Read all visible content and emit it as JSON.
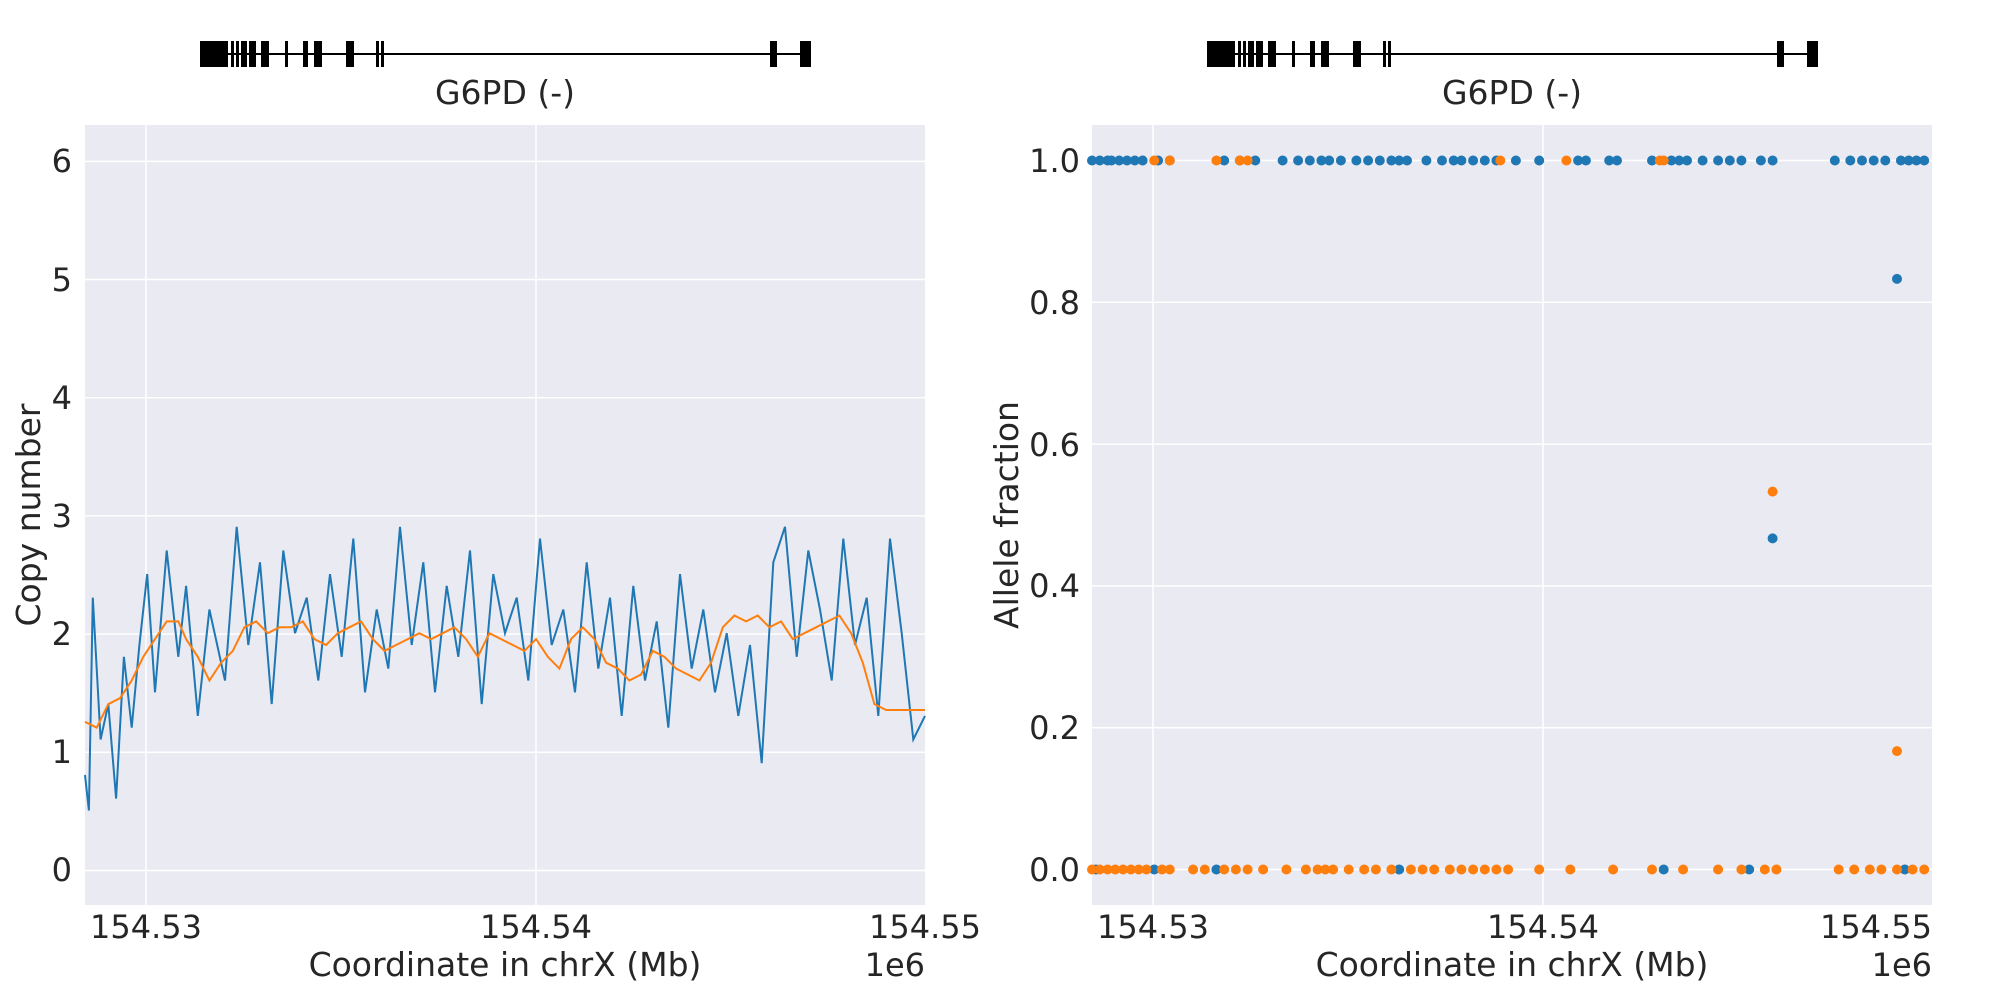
{
  "chart_data": [
    {
      "type": "line",
      "gene_track": {
        "label": "G6PD (-)"
      },
      "xlabel": "Coordinate in chrX (Mb)",
      "ylabel": "Copy number",
      "x_offset_label": "1e6",
      "xlim": [
        154.5284,
        154.55
      ],
      "ylim": [
        -0.3,
        6.3
      ],
      "x_ticks": [
        "154.53",
        "154.54",
        "154.55"
      ],
      "y_ticks": [
        "0",
        "1",
        "2",
        "3",
        "4",
        "5",
        "6"
      ],
      "grid": true,
      "series": [
        {
          "color": "#1f77b4",
          "x": [
            154.5284,
            154.5285,
            154.5286,
            154.5288,
            154.529,
            154.5292,
            154.5294,
            154.5296,
            154.5298,
            154.53,
            154.5302,
            154.5305,
            154.5308,
            154.531,
            154.5313,
            154.5316,
            154.532,
            154.5323,
            154.5326,
            154.5329,
            154.5332,
            154.5335,
            154.5338,
            154.5341,
            154.5344,
            154.5347,
            154.535,
            154.5353,
            154.5356,
            154.5359,
            154.5362,
            154.5365,
            154.5368,
            154.5371,
            154.5374,
            154.5377,
            154.538,
            154.5383,
            154.5386,
            154.5389,
            154.5392,
            154.5395,
            154.5398,
            154.5401,
            154.5404,
            154.5407,
            154.541,
            154.5413,
            154.5416,
            154.5419,
            154.5422,
            154.5425,
            154.5428,
            154.5431,
            154.5434,
            154.5437,
            154.544,
            154.5443,
            154.5446,
            154.5449,
            154.5452,
            154.5455,
            154.5458,
            154.5461,
            154.5464,
            154.5467,
            154.547,
            154.5473,
            154.5476,
            154.5479,
            154.5482,
            154.5485,
            154.5488,
            154.5491,
            154.5494,
            154.5497,
            154.55
          ],
          "values": [
            0.8,
            0.5,
            2.3,
            1.1,
            1.4,
            0.6,
            1.8,
            1.2,
            1.9,
            2.5,
            1.5,
            2.7,
            1.8,
            2.4,
            1.3,
            2.2,
            1.6,
            2.9,
            1.9,
            2.6,
            1.4,
            2.7,
            2.0,
            2.3,
            1.6,
            2.5,
            1.8,
            2.8,
            1.5,
            2.2,
            1.7,
            2.9,
            1.9,
            2.6,
            1.5,
            2.4,
            1.8,
            2.7,
            1.4,
            2.5,
            2.0,
            2.3,
            1.6,
            2.8,
            1.9,
            2.2,
            1.5,
            2.6,
            1.7,
            2.3,
            1.3,
            2.4,
            1.6,
            2.1,
            1.2,
            2.5,
            1.7,
            2.2,
            1.5,
            2.0,
            1.3,
            1.9,
            0.9,
            2.6,
            2.9,
            1.8,
            2.7,
            2.2,
            1.6,
            2.8,
            1.9,
            2.3,
            1.3,
            2.8,
            2.0,
            1.1,
            1.3
          ]
        },
        {
          "color": "#ff7f0e",
          "x": [
            154.5284,
            154.5287,
            154.529,
            154.5293,
            154.5296,
            154.5299,
            154.5302,
            154.5305,
            154.5308,
            154.531,
            154.5313,
            154.5316,
            154.5319,
            154.5322,
            154.5325,
            154.5328,
            154.5331,
            154.5334,
            154.5337,
            154.534,
            154.5343,
            154.5346,
            154.5349,
            154.5352,
            154.5355,
            154.5358,
            154.5361,
            154.5364,
            154.5367,
            154.537,
            154.5373,
            154.5376,
            154.5379,
            154.5382,
            154.5385,
            154.5388,
            154.5391,
            154.5394,
            154.5397,
            154.54,
            154.5403,
            154.5406,
            154.5409,
            154.5412,
            154.5415,
            154.5418,
            154.5421,
            154.5424,
            154.5427,
            154.543,
            154.5433,
            154.5436,
            154.5439,
            154.5442,
            154.5445,
            154.5448,
            154.5451,
            154.5454,
            154.5457,
            154.546,
            154.5463,
            154.5466,
            154.5469,
            154.5472,
            154.5475,
            154.5478,
            154.5481,
            154.5484,
            154.5487,
            154.549,
            154.5493,
            154.5496,
            154.5498,
            154.55
          ],
          "values": [
            1.25,
            1.2,
            1.4,
            1.45,
            1.6,
            1.8,
            1.95,
            2.1,
            2.1,
            1.95,
            1.8,
            1.6,
            1.75,
            1.85,
            2.05,
            2.1,
            2.0,
            2.05,
            2.05,
            2.1,
            1.95,
            1.9,
            2.0,
            2.05,
            2.1,
            1.95,
            1.85,
            1.9,
            1.95,
            2.0,
            1.95,
            2.0,
            2.05,
            1.95,
            1.8,
            2.0,
            1.95,
            1.9,
            1.85,
            1.95,
            1.8,
            1.7,
            1.95,
            2.05,
            1.95,
            1.75,
            1.7,
            1.6,
            1.65,
            1.85,
            1.8,
            1.7,
            1.65,
            1.6,
            1.75,
            2.05,
            2.15,
            2.1,
            2.15,
            2.05,
            2.1,
            1.95,
            2.0,
            2.05,
            2.1,
            2.15,
            2.0,
            1.75,
            1.4,
            1.35,
            1.35,
            1.35,
            1.35,
            1.35
          ]
        }
      ]
    },
    {
      "type": "scatter",
      "gene_track": {
        "label": "G6PD (-)"
      },
      "xlabel": "Coordinate in chrX (Mb)",
      "ylabel": "Allele fraction",
      "x_offset_label": "1e6",
      "xlim": [
        154.5284,
        154.55
      ],
      "ylim": [
        -0.05,
        1.05
      ],
      "x_ticks": [
        "154.53",
        "154.54",
        "154.55"
      ],
      "y_ticks": [
        "0.0",
        "0.2",
        "0.4",
        "0.6",
        "0.8",
        "1.0"
      ],
      "grid": true,
      "series": [
        {
          "color": "#1f77b4",
          "points": [
            [
              154.5284,
              1.0
            ],
            [
              154.5286,
              1.0
            ],
            [
              154.5288,
              1.0
            ],
            [
              154.5289,
              1.0
            ],
            [
              154.5291,
              1.0
            ],
            [
              154.5293,
              1.0
            ],
            [
              154.5295,
              1.0
            ],
            [
              154.5297,
              1.0
            ],
            [
              154.5301,
              1.0
            ],
            [
              154.5304,
              1.0
            ],
            [
              154.5318,
              1.0
            ],
            [
              154.5322,
              1.0
            ],
            [
              154.5326,
              1.0
            ],
            [
              154.5333,
              1.0
            ],
            [
              154.5337,
              1.0
            ],
            [
              154.534,
              1.0
            ],
            [
              154.5343,
              1.0
            ],
            [
              154.5345,
              1.0
            ],
            [
              154.5348,
              1.0
            ],
            [
              154.5352,
              1.0
            ],
            [
              154.5355,
              1.0
            ],
            [
              154.5358,
              1.0
            ],
            [
              154.5361,
              1.0
            ],
            [
              154.5363,
              1.0
            ],
            [
              154.5365,
              1.0
            ],
            [
              154.537,
              1.0
            ],
            [
              154.5374,
              1.0
            ],
            [
              154.5377,
              1.0
            ],
            [
              154.5379,
              1.0
            ],
            [
              154.5382,
              1.0
            ],
            [
              154.5385,
              1.0
            ],
            [
              154.5388,
              1.0
            ],
            [
              154.5393,
              1.0
            ],
            [
              154.5399,
              1.0
            ],
            [
              154.5409,
              1.0
            ],
            [
              154.5411,
              1.0
            ],
            [
              154.5417,
              1.0
            ],
            [
              154.5419,
              1.0
            ],
            [
              154.5428,
              1.0
            ],
            [
              154.5433,
              1.0
            ],
            [
              154.5435,
              1.0
            ],
            [
              154.5437,
              1.0
            ],
            [
              154.5441,
              1.0
            ],
            [
              154.5445,
              1.0
            ],
            [
              154.5448,
              1.0
            ],
            [
              154.5451,
              1.0
            ],
            [
              154.5456,
              1.0
            ],
            [
              154.5459,
              1.0
            ],
            [
              154.5475,
              1.0
            ],
            [
              154.5479,
              1.0
            ],
            [
              154.5482,
              1.0
            ],
            [
              154.5485,
              1.0
            ],
            [
              154.5488,
              1.0
            ],
            [
              154.5492,
              1.0
            ],
            [
              154.5494,
              1.0
            ],
            [
              154.5496,
              1.0
            ],
            [
              154.5498,
              1.0
            ],
            [
              154.5491,
              0.833
            ],
            [
              154.5459,
              0.467
            ],
            [
              154.5285,
              0.0
            ],
            [
              154.53,
              0.0
            ],
            [
              154.5316,
              0.0
            ],
            [
              154.5363,
              0.0
            ],
            [
              154.5431,
              0.0
            ],
            [
              154.5453,
              0.0
            ],
            [
              154.5493,
              0.0
            ]
          ]
        },
        {
          "color": "#ff7f0e",
          "points": [
            [
              154.53,
              1.0
            ],
            [
              154.5304,
              1.0
            ],
            [
              154.5316,
              1.0
            ],
            [
              154.5322,
              1.0
            ],
            [
              154.5324,
              1.0
            ],
            [
              154.5389,
              1.0
            ],
            [
              154.5406,
              1.0
            ],
            [
              154.543,
              1.0
            ],
            [
              154.5431,
              1.0
            ],
            [
              154.5459,
              0.533
            ],
            [
              154.5491,
              0.167
            ],
            [
              154.5284,
              0.0
            ],
            [
              154.5286,
              0.0
            ],
            [
              154.5288,
              0.0
            ],
            [
              154.529,
              0.0
            ],
            [
              154.5292,
              0.0
            ],
            [
              154.5294,
              0.0
            ],
            [
              154.5296,
              0.0
            ],
            [
              154.5298,
              0.0
            ],
            [
              154.5302,
              0.0
            ],
            [
              154.5304,
              0.0
            ],
            [
              154.531,
              0.0
            ],
            [
              154.5313,
              0.0
            ],
            [
              154.5318,
              0.0
            ],
            [
              154.5321,
              0.0
            ],
            [
              154.5324,
              0.0
            ],
            [
              154.5328,
              0.0
            ],
            [
              154.5334,
              0.0
            ],
            [
              154.5339,
              0.0
            ],
            [
              154.5342,
              0.0
            ],
            [
              154.5344,
              0.0
            ],
            [
              154.5346,
              0.0
            ],
            [
              154.535,
              0.0
            ],
            [
              154.5354,
              0.0
            ],
            [
              154.5357,
              0.0
            ],
            [
              154.5361,
              0.0
            ],
            [
              154.5366,
              0.0
            ],
            [
              154.5369,
              0.0
            ],
            [
              154.5372,
              0.0
            ],
            [
              154.5376,
              0.0
            ],
            [
              154.5379,
              0.0
            ],
            [
              154.5382,
              0.0
            ],
            [
              154.5385,
              0.0
            ],
            [
              154.5388,
              0.0
            ],
            [
              154.5391,
              0.0
            ],
            [
              154.5399,
              0.0
            ],
            [
              154.5407,
              0.0
            ],
            [
              154.5418,
              0.0
            ],
            [
              154.5428,
              0.0
            ],
            [
              154.5436,
              0.0
            ],
            [
              154.5445,
              0.0
            ],
            [
              154.5451,
              0.0
            ],
            [
              154.5457,
              0.0
            ],
            [
              154.546,
              0.0
            ],
            [
              154.5476,
              0.0
            ],
            [
              154.548,
              0.0
            ],
            [
              154.5484,
              0.0
            ],
            [
              154.5487,
              0.0
            ],
            [
              154.5491,
              0.0
            ],
            [
              154.5495,
              0.0
            ],
            [
              154.5498,
              0.0
            ]
          ]
        }
      ]
    }
  ]
}
